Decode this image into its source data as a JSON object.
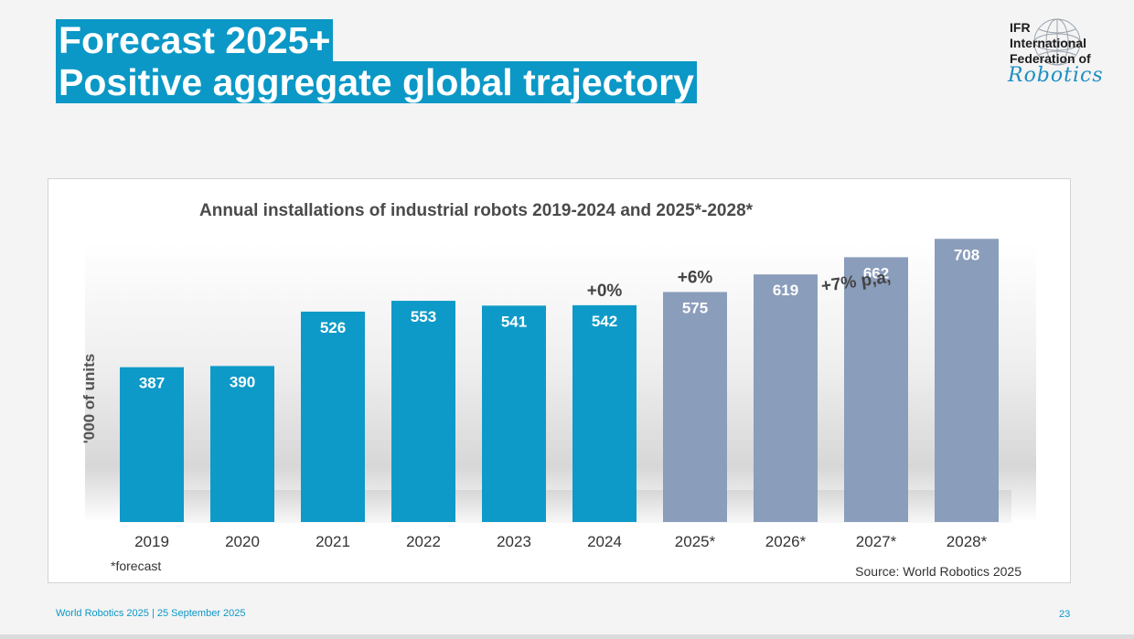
{
  "slide": {
    "title_line1": "Forecast 2025+",
    "title_line2": "Positive aggregate global trajectory"
  },
  "logo": {
    "line1": "IFR",
    "line2": "International",
    "line3": "Federation of",
    "script": "Robotics"
  },
  "chart_data": {
    "type": "bar",
    "title": "Annual installations of industrial robots 2019-2024 and 2025*-2028*",
    "xlabel": "",
    "ylabel": "'000 of units",
    "categories": [
      "2019",
      "2020",
      "2021",
      "2022",
      "2023",
      "2024",
      "2025*",
      "2026*",
      "2027*",
      "2028*"
    ],
    "values": [
      387,
      390,
      526,
      553,
      541,
      542,
      575,
      619,
      662,
      708
    ],
    "forecast": [
      false,
      false,
      false,
      false,
      false,
      false,
      true,
      true,
      true,
      true
    ],
    "ylim": [
      0,
      800
    ],
    "grid": false,
    "colors": {
      "actual": "#0e9ac8",
      "forecast": "#8a9dbb"
    },
    "annotations": [
      {
        "text": "+0%",
        "category": "2024"
      },
      {
        "text": "+6%",
        "category": "2025*"
      },
      {
        "text": "+7% p,a,",
        "category": "2027*"
      }
    ],
    "footnote": "*forecast",
    "source": "Source: World Robotics 2025"
  },
  "footer": {
    "left": "World Robotics 2025  | 25 September 2025",
    "page": "23"
  }
}
